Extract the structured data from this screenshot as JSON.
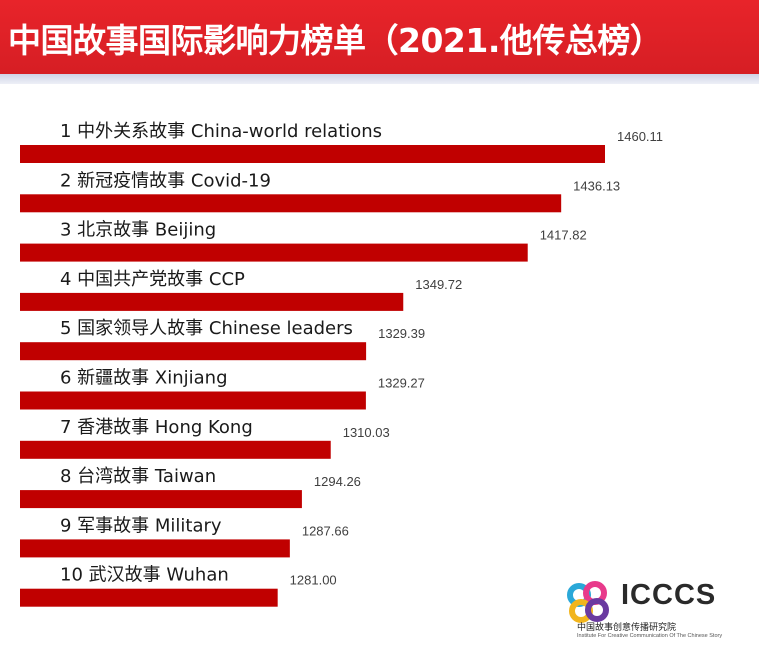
{
  "header": {
    "title": "中国故事国际影响力榜单（2021.他传总榜）",
    "background_color": "#e0232a"
  },
  "chart_data": {
    "type": "bar",
    "orientation": "horizontal",
    "title": "中国故事国际影响力榜单（2021.他传总榜）",
    "bar_color": "#c00000",
    "categories": [
      "1   中外关系故事 China-world relations",
      "2   新冠疫情故事 Covid-19",
      "3   北京故事 Beijing",
      "4   中国共产党故事 CCP",
      "5   国家领导人故事 Chinese leaders",
      "6   新疆故事 Xinjiang",
      "7   香港故事 Hong Kong",
      "8   台湾故事 Taiwan",
      "9   军事故事 Military",
      "10 武汉故事 Wuhan"
    ],
    "values": [
      1460.11,
      1436.13,
      1417.82,
      1349.72,
      1329.39,
      1329.27,
      1310.03,
      1294.26,
      1287.66,
      1281.0
    ],
    "value_labels": [
      "1460.11",
      "1436.13",
      "1417.82",
      "1349.72",
      "1329.39",
      "1329.27",
      "1310.03",
      "1294.26",
      "1287.66",
      "1281.00"
    ],
    "xlim": [
      1200,
      1480
    ]
  },
  "logo": {
    "text": "ICCCS",
    "subtitle_cn": "中国故事创意传播研究院",
    "subtitle_en": "Institute For Creative Communication Of The Chinese Story",
    "colors": [
      "#e83a8b",
      "#f2b51d",
      "#2aa8d8",
      "#6a3aa0"
    ]
  }
}
